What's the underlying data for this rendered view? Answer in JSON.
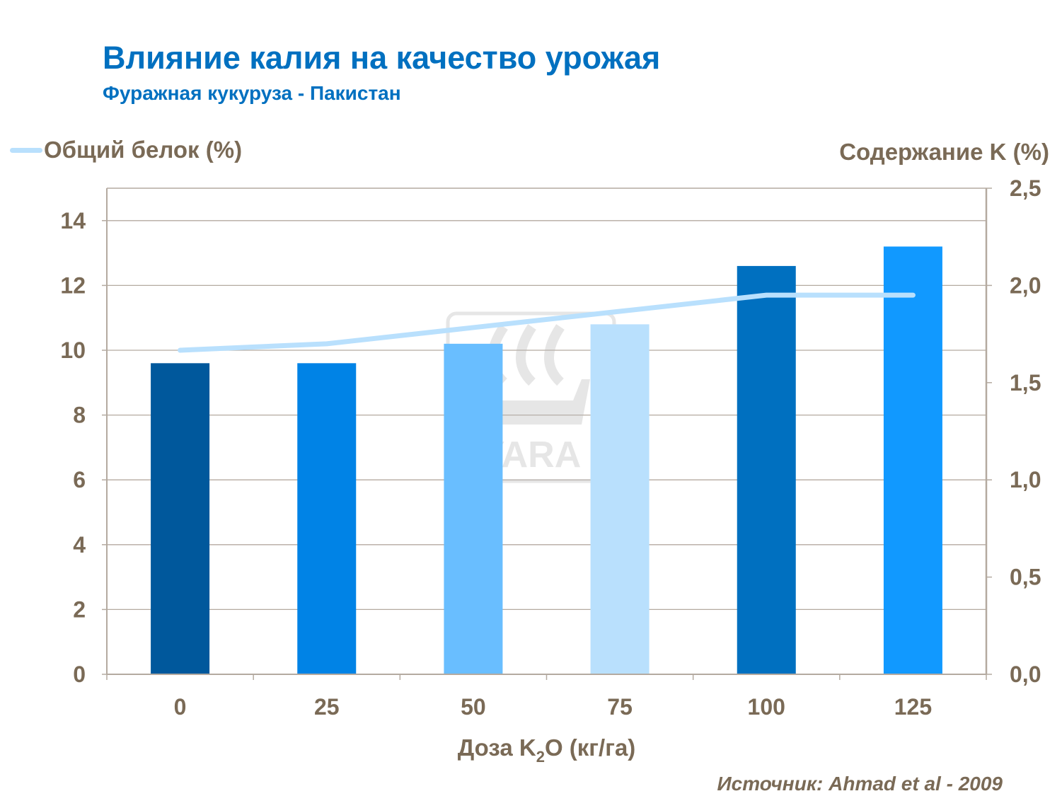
{
  "title": "Влияние калия на качество урожая",
  "subtitle": "Фуражная  кукуруза - Пакистан",
  "source": "Источник: Ahmad et al - 2009",
  "watermark": "YARA",
  "chart_data": {
    "type": "bar+line",
    "categories": [
      "0",
      "25",
      "50",
      "75",
      "100",
      "125"
    ],
    "xlabel_parts": [
      "Доза K",
      "2",
      "O (кг/га)"
    ],
    "ylabel_left": "Общий белок (%)",
    "ylabel_right": "Содержание K (%)",
    "ylim_left": [
      0,
      15
    ],
    "yticks_left": [
      "0",
      "2",
      "4",
      "6",
      "8",
      "10",
      "12",
      "14"
    ],
    "ylim_right": [
      0,
      2.5
    ],
    "yticks_right": [
      "0,0",
      "0,5",
      "1,0",
      "1,5",
      "2,0",
      "2,5"
    ],
    "grid": true,
    "legend": "top-left",
    "bars": {
      "axis": "right",
      "values": [
        1.6,
        1.6,
        1.7,
        1.8,
        2.1,
        2.2
      ],
      "colors": [
        "#00589C",
        "#0083E6",
        "#69BEFF",
        "#B9E0FD",
        "#0070C0",
        "#1199FF"
      ]
    },
    "line": {
      "name": "Общий белок (%)",
      "axis": "left",
      "values": [
        10.0,
        10.2,
        10.7,
        11.2,
        11.7,
        11.7
      ],
      "color": "#B9E0FD"
    }
  }
}
